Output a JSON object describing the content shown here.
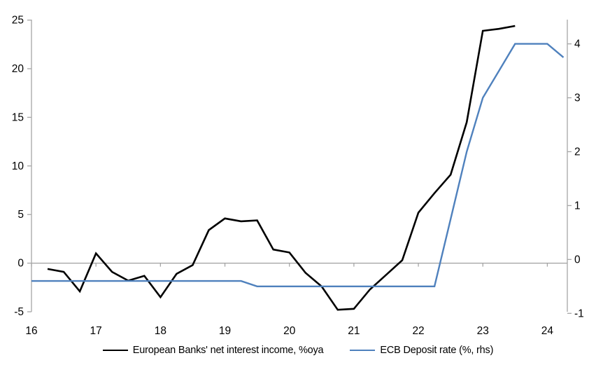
{
  "chart_data": {
    "type": "line",
    "title": "",
    "x_axis": {
      "tick_labels": [
        "16",
        "17",
        "18",
        "19",
        "20",
        "21",
        "22",
        "23",
        "24"
      ],
      "tick_values": [
        16,
        17,
        18,
        19,
        20,
        21,
        22,
        23,
        24
      ],
      "range": [
        16,
        24.31
      ]
    },
    "left_axis": {
      "ticks": [
        -5,
        0,
        5,
        10,
        15,
        20,
        25
      ],
      "range": [
        -5,
        25.05
      ]
    },
    "right_axis": {
      "ticks": [
        -1,
        0,
        1,
        2,
        3,
        4
      ],
      "range": [
        -0.97,
        4.45
      ]
    },
    "grid": "zero-line-only",
    "legend_position": "bottom",
    "series": [
      {
        "name": "European Banks' net interest income, %oya",
        "axis": "left",
        "color": "#000000",
        "stroke_width": 2.6,
        "points": [
          [
            16.25,
            -0.6
          ],
          [
            16.5,
            -0.9
          ],
          [
            16.75,
            -2.9
          ],
          [
            17,
            1.0
          ],
          [
            17.25,
            -0.9
          ],
          [
            17.5,
            -1.8
          ],
          [
            17.75,
            -1.3
          ],
          [
            18,
            -3.5
          ],
          [
            18.25,
            -1.1
          ],
          [
            18.5,
            -0.2
          ],
          [
            18.75,
            3.4
          ],
          [
            19,
            4.6
          ],
          [
            19.25,
            4.3
          ],
          [
            19.5,
            4.4
          ],
          [
            19.75,
            1.4
          ],
          [
            20,
            1.1
          ],
          [
            20.25,
            -1.0
          ],
          [
            20.5,
            -2.4
          ],
          [
            20.75,
            -4.8
          ],
          [
            21,
            -4.7
          ],
          [
            21.25,
            -2.7
          ],
          [
            21.5,
            -1.2
          ],
          [
            21.75,
            0.3
          ],
          [
            22,
            5.2
          ],
          [
            22.25,
            7.2
          ],
          [
            22.5,
            9.1
          ],
          [
            22.75,
            14.5
          ],
          [
            23,
            23.9
          ],
          [
            23.25,
            24.1
          ],
          [
            23.5,
            24.4
          ]
        ]
      },
      {
        "name": "ECB Deposit rate (%, rhs)",
        "axis": "right",
        "color": "#4f81bd",
        "stroke_width": 2.4,
        "points": [
          [
            16,
            -0.4
          ],
          [
            16.25,
            -0.4
          ],
          [
            16.5,
            -0.4
          ],
          [
            16.75,
            -0.4
          ],
          [
            17,
            -0.4
          ],
          [
            17.25,
            -0.4
          ],
          [
            17.5,
            -0.4
          ],
          [
            17.75,
            -0.4
          ],
          [
            18,
            -0.4
          ],
          [
            18.25,
            -0.4
          ],
          [
            18.5,
            -0.4
          ],
          [
            18.75,
            -0.4
          ],
          [
            19,
            -0.4
          ],
          [
            19.25,
            -0.4
          ],
          [
            19.5,
            -0.5
          ],
          [
            19.75,
            -0.5
          ],
          [
            20,
            -0.5
          ],
          [
            20.25,
            -0.5
          ],
          [
            20.5,
            -0.5
          ],
          [
            20.75,
            -0.5
          ],
          [
            21,
            -0.5
          ],
          [
            21.25,
            -0.5
          ],
          [
            21.5,
            -0.5
          ],
          [
            21.75,
            -0.5
          ],
          [
            22,
            -0.5
          ],
          [
            22.25,
            -0.5
          ],
          [
            22.5,
            0.75
          ],
          [
            22.75,
            2.0
          ],
          [
            23,
            3.0
          ],
          [
            23.25,
            3.5
          ],
          [
            23.5,
            4.0
          ],
          [
            23.75,
            4.0
          ],
          [
            24,
            4.0
          ],
          [
            24.25,
            3.75
          ]
        ]
      }
    ],
    "colors": {
      "axis": "#a6a6a6",
      "zero_line": "#a0a0a0",
      "text": "#000000",
      "background": "#ffffff"
    }
  }
}
